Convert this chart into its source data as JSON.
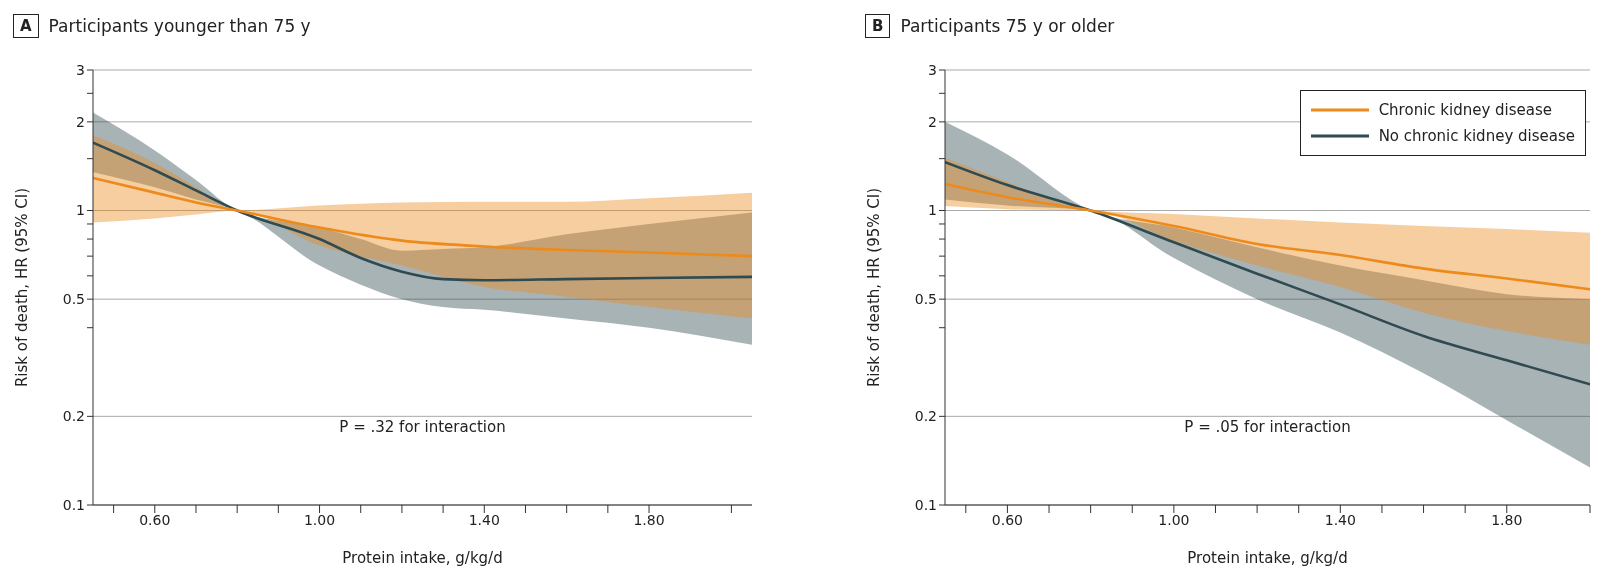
{
  "chart_data": [
    {
      "type": "line",
      "title": "Participants younger than 75 y",
      "xlabel": "Protein intake, g/kg/d",
      "ylabel": "Risk of death, HR (95% CI)",
      "annotations": [
        "A",
        "P = .32 for interaction"
      ],
      "log": "y",
      "grid": "y",
      "xlim": [
        0.45,
        2.05
      ],
      "xticks": [
        {
          "value": 0.5,
          "label": null
        },
        {
          "value": 0.6,
          "label": "0.60"
        },
        {
          "value": 0.7,
          "label": null
        },
        {
          "value": 0.8,
          "label": null
        },
        {
          "value": 0.9,
          "label": null
        },
        {
          "value": 1.0,
          "label": "1.00"
        },
        {
          "value": 1.1,
          "label": null
        },
        {
          "value": 1.2,
          "label": null
        },
        {
          "value": 1.3,
          "label": null
        },
        {
          "value": 1.4,
          "label": "1.40"
        },
        {
          "value": 1.5,
          "label": null
        },
        {
          "value": 1.6,
          "label": null
        },
        {
          "value": 1.7,
          "label": null
        },
        {
          "value": 1.8,
          "label": "1.80"
        },
        {
          "value": 2.0,
          "label": null
        }
      ],
      "ylim": [
        0.1,
        3
      ],
      "yticks": [
        0.1,
        0.2,
        {
          "value": 0.4,
          "label": null
        },
        0.5,
        {
          "value": 0.6,
          "label": null
        },
        {
          "value": 0.7,
          "label": null
        },
        {
          "value": 0.8,
          "label": null
        },
        {
          "value": 0.9,
          "label": null
        },
        1,
        {
          "value": 1.5,
          "label": null
        },
        2,
        {
          "value": 2.5,
          "label": null
        },
        3
      ],
      "series": [
        {
          "color": "#2f4a50",
          "x": [
            0.45,
            0.6,
            0.7,
            0.8,
            1.0,
            1.1,
            1.2,
            1.3,
            1.4,
            1.6,
            1.8,
            2.05
          ],
          "values": [
            1.7,
            1.37,
            1.17,
            1.0,
            0.8,
            0.69,
            0.62,
            0.585,
            0.58,
            0.585,
            0.59,
            0.595
          ],
          "lower": [
            1.35,
            1.2,
            1.09,
            1.0,
            0.65,
            0.56,
            0.5,
            0.47,
            0.46,
            0.43,
            0.4,
            0.35
          ],
          "upper": [
            2.15,
            1.6,
            1.27,
            1.0,
            0.875,
            0.8,
            0.73,
            0.74,
            0.75,
            0.83,
            0.9,
            0.985
          ]
        },
        {
          "color": "#ec8a1c",
          "x": [
            0.45,
            0.6,
            0.7,
            0.8,
            1.0,
            1.2,
            1.4,
            1.6,
            1.8,
            2.05
          ],
          "values": [
            1.29,
            1.15,
            1.065,
            1.0,
            0.875,
            0.79,
            0.755,
            0.734,
            0.72,
            0.7
          ],
          "lower": [
            0.91,
            0.94,
            0.97,
            1.0,
            0.76,
            0.65,
            0.55,
            0.51,
            0.47,
            0.43
          ],
          "upper": [
            1.8,
            1.45,
            1.2,
            1.0,
            1.04,
            1.065,
            1.07,
            1.07,
            1.1,
            1.15
          ]
        }
      ]
    },
    {
      "type": "line",
      "title": "Participants 75 y or older",
      "xlabel": "Protein intake, g/kg/d",
      "ylabel": "Risk of death, HR (95% CI)",
      "annotations": [
        "B",
        "P = .05 for interaction"
      ],
      "log": "y",
      "grid": "y",
      "legend": "top right",
      "xlim": [
        0.45,
        2.0
      ],
      "xticks": [
        {
          "value": 0.5,
          "label": null
        },
        {
          "value": 0.6,
          "label": "0.60"
        },
        {
          "value": 0.7,
          "label": null
        },
        {
          "value": 0.8,
          "label": null
        },
        {
          "value": 0.9,
          "label": null
        },
        {
          "value": 1.0,
          "label": "1.00"
        },
        {
          "value": 1.1,
          "label": null
        },
        {
          "value": 1.2,
          "label": null
        },
        {
          "value": 1.3,
          "label": null
        },
        {
          "value": 1.4,
          "label": "1.40"
        },
        {
          "value": 1.5,
          "label": null
        },
        {
          "value": 1.6,
          "label": null
        },
        {
          "value": 1.7,
          "label": null
        },
        {
          "value": 1.8,
          "label": "1.80"
        },
        {
          "value": 2.0,
          "label": null
        }
      ],
      "ylim": [
        0.1,
        3
      ],
      "yticks": [
        0.1,
        0.2,
        {
          "value": 0.4,
          "label": null
        },
        0.5,
        {
          "value": 0.6,
          "label": null
        },
        {
          "value": 0.7,
          "label": null
        },
        {
          "value": 0.8,
          "label": null
        },
        {
          "value": 0.9,
          "label": null
        },
        1,
        {
          "value": 1.5,
          "label": null
        },
        2,
        {
          "value": 2.5,
          "label": null
        },
        3
      ],
      "series": [
        {
          "name": "No chronic kidney disease",
          "color": "#2f4a50",
          "x": [
            0.45,
            0.6,
            0.8,
            1.0,
            1.2,
            1.4,
            1.6,
            1.8,
            2.0
          ],
          "values": [
            1.46,
            1.22,
            1.0,
            0.78,
            0.61,
            0.48,
            0.375,
            0.31,
            0.257
          ],
          "lower": [
            1.09,
            1.04,
            1.0,
            0.69,
            0.5,
            0.385,
            0.28,
            0.194,
            0.134
          ],
          "upper": [
            2.0,
            1.55,
            1.0,
            0.875,
            0.75,
            0.65,
            0.58,
            0.52,
            0.5
          ]
        },
        {
          "name": "Chronic kidney disease",
          "color": "#ec8a1c",
          "x": [
            0.45,
            0.6,
            0.8,
            1.0,
            1.2,
            1.4,
            1.6,
            1.8,
            2.0
          ],
          "values": [
            1.23,
            1.11,
            1.0,
            0.886,
            0.77,
            0.706,
            0.635,
            0.588,
            0.54
          ],
          "lower": [
            1.035,
            1.01,
            1.0,
            0.79,
            0.65,
            0.55,
            0.45,
            0.39,
            0.35
          ],
          "upper": [
            1.51,
            1.25,
            1.0,
            0.973,
            0.94,
            0.91,
            0.886,
            0.865,
            0.84
          ]
        }
      ]
    }
  ]
}
